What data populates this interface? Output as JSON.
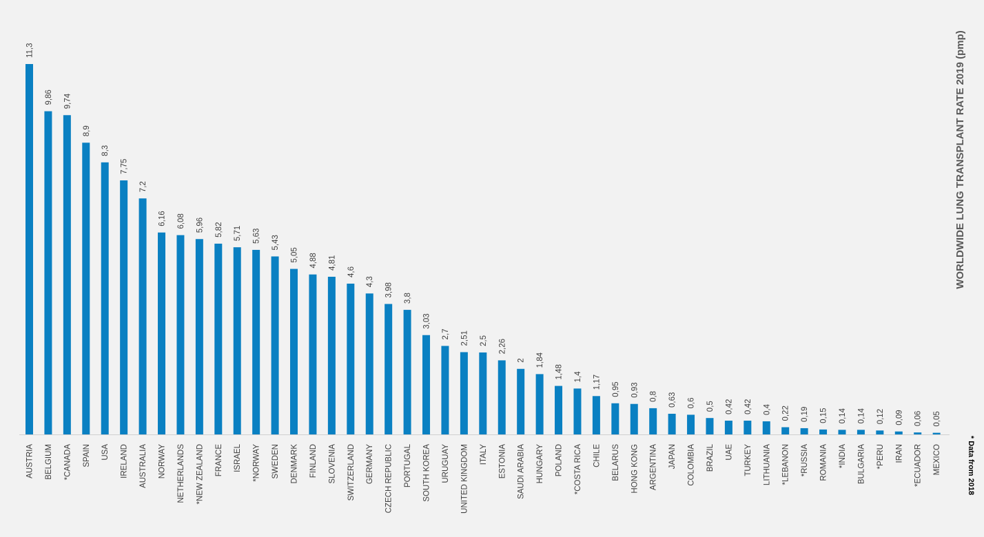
{
  "chart_data": {
    "type": "bar",
    "title": "WORLDWIDE LUNG TRANSPLANT RATE 2019 (pmp)",
    "note": "* Data from 2018",
    "xlabel": "",
    "ylabel": "",
    "ylim": [
      0,
      11.3
    ],
    "grid": false,
    "legend": "none",
    "bar_color": "#0a80c2",
    "categories": [
      "AUSTRIA",
      "BELGIUM",
      "*CANADA",
      "SPAIN",
      "USA",
      "IRELAND",
      "AUSTRALIA",
      "NORWAY",
      "NETHERLANDS",
      "*NEW ZEALAND",
      "FRANCE",
      "ISRAEL",
      "*NORWAY",
      "SWEDEN",
      "DENMARK",
      "FINLAND",
      "SLOVENIA",
      "SWITZERLAND",
      "GERMANY",
      "CZECH REPUBLIC",
      "PORTUGAL",
      "SOUTH KOREA",
      "URUGUAY",
      "UNITED KINGDOM",
      "ITALY",
      "ESTONIA",
      "SAUDI ARABIA",
      "HUNGARY",
      "POLAND",
      "*COSTA RICA",
      "CHILE",
      "BELARUS",
      "HONG KONG",
      "ARGENTINA",
      "JAPAN",
      "COLOMBIA",
      "BRAZIL",
      "UAE",
      "TURKEY",
      "LITHUANIA",
      "*LEBANON",
      "*RUSSIA",
      "ROMANIA",
      "*INDIA",
      "BULGARIA",
      "*PERU",
      "IRAN",
      "*ECUADOR",
      "MEXICO"
    ],
    "values": [
      11.3,
      9.86,
      9.74,
      8.9,
      8.3,
      7.75,
      7.2,
      6.16,
      6.08,
      5.96,
      5.82,
      5.71,
      5.63,
      5.43,
      5.05,
      4.88,
      4.81,
      4.6,
      4.3,
      3.98,
      3.8,
      3.03,
      2.7,
      2.51,
      2.5,
      2.26,
      2,
      1.84,
      1.48,
      1.4,
      1.17,
      0.95,
      0.93,
      0.8,
      0.63,
      0.6,
      0.5,
      0.42,
      0.42,
      0.4,
      0.22,
      0.19,
      0.15,
      0.14,
      0.14,
      0.12,
      0.09,
      0.06,
      0.05
    ],
    "value_labels": [
      "11,3",
      "9,86",
      "9,74",
      "8,9",
      "8,3",
      "7,75",
      "7,2",
      "6,16",
      "6,08",
      "5,96",
      "5,82",
      "5,71",
      "5,63",
      "5,43",
      "5,05",
      "4,88",
      "4,81",
      "4,6",
      "4,3",
      "3,98",
      "3,8",
      "3,03",
      "2,7",
      "2,51",
      "2,5",
      "2,26",
      "2",
      "1,84",
      "1,48",
      "1,4",
      "1,17",
      "0,95",
      "0,93",
      "0,8",
      "0,63",
      "0,6",
      "0,5",
      "0,42",
      "0,42",
      "0,4",
      "0,22",
      "0,19",
      "0,15",
      "0,14",
      "0,14",
      "0,12",
      "0,09",
      "0,06",
      "0,05"
    ]
  }
}
